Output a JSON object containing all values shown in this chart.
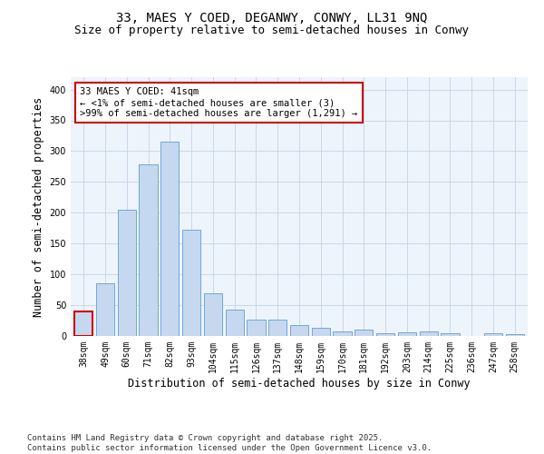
{
  "title_line1": "33, MAES Y COED, DEGANWY, CONWY, LL31 9NQ",
  "title_line2": "Size of property relative to semi-detached houses in Conwy",
  "xlabel": "Distribution of semi-detached houses by size in Conwy",
  "ylabel": "Number of semi-detached properties",
  "categories": [
    "38sqm",
    "49sqm",
    "60sqm",
    "71sqm",
    "82sqm",
    "93sqm",
    "104sqm",
    "115sqm",
    "126sqm",
    "137sqm",
    "148sqm",
    "159sqm",
    "170sqm",
    "181sqm",
    "192sqm",
    "203sqm",
    "214sqm",
    "225sqm",
    "236sqm",
    "247sqm",
    "258sqm"
  ],
  "values": [
    40,
    85,
    205,
    278,
    315,
    172,
    70,
    43,
    27,
    27,
    18,
    14,
    8,
    10,
    4,
    6,
    8,
    4,
    0,
    4,
    3
  ],
  "bar_color": "#c5d8f0",
  "bar_edge_color": "#6fa8d6",
  "highlight_bar_index": 0,
  "highlight_bar_edge_color": "#cc0000",
  "annotation_text": "33 MAES Y COED: 41sqm\n← <1% of semi-detached houses are smaller (3)\n>99% of semi-detached houses are larger (1,291) →",
  "annotation_box_color": "#ffffff",
  "annotation_box_edge_color": "#cc0000",
  "ylim": [
    0,
    420
  ],
  "yticks": [
    0,
    50,
    100,
    150,
    200,
    250,
    300,
    350,
    400
  ],
  "grid_color": "#c8d8e8",
  "background_color": "#eef4fb",
  "footer_line1": "Contains HM Land Registry data © Crown copyright and database right 2025.",
  "footer_line2": "Contains public sector information licensed under the Open Government Licence v3.0.",
  "title_fontsize": 10,
  "subtitle_fontsize": 9,
  "axis_label_fontsize": 8.5,
  "tick_fontsize": 7,
  "annotation_fontsize": 7.5,
  "footer_fontsize": 6.5
}
